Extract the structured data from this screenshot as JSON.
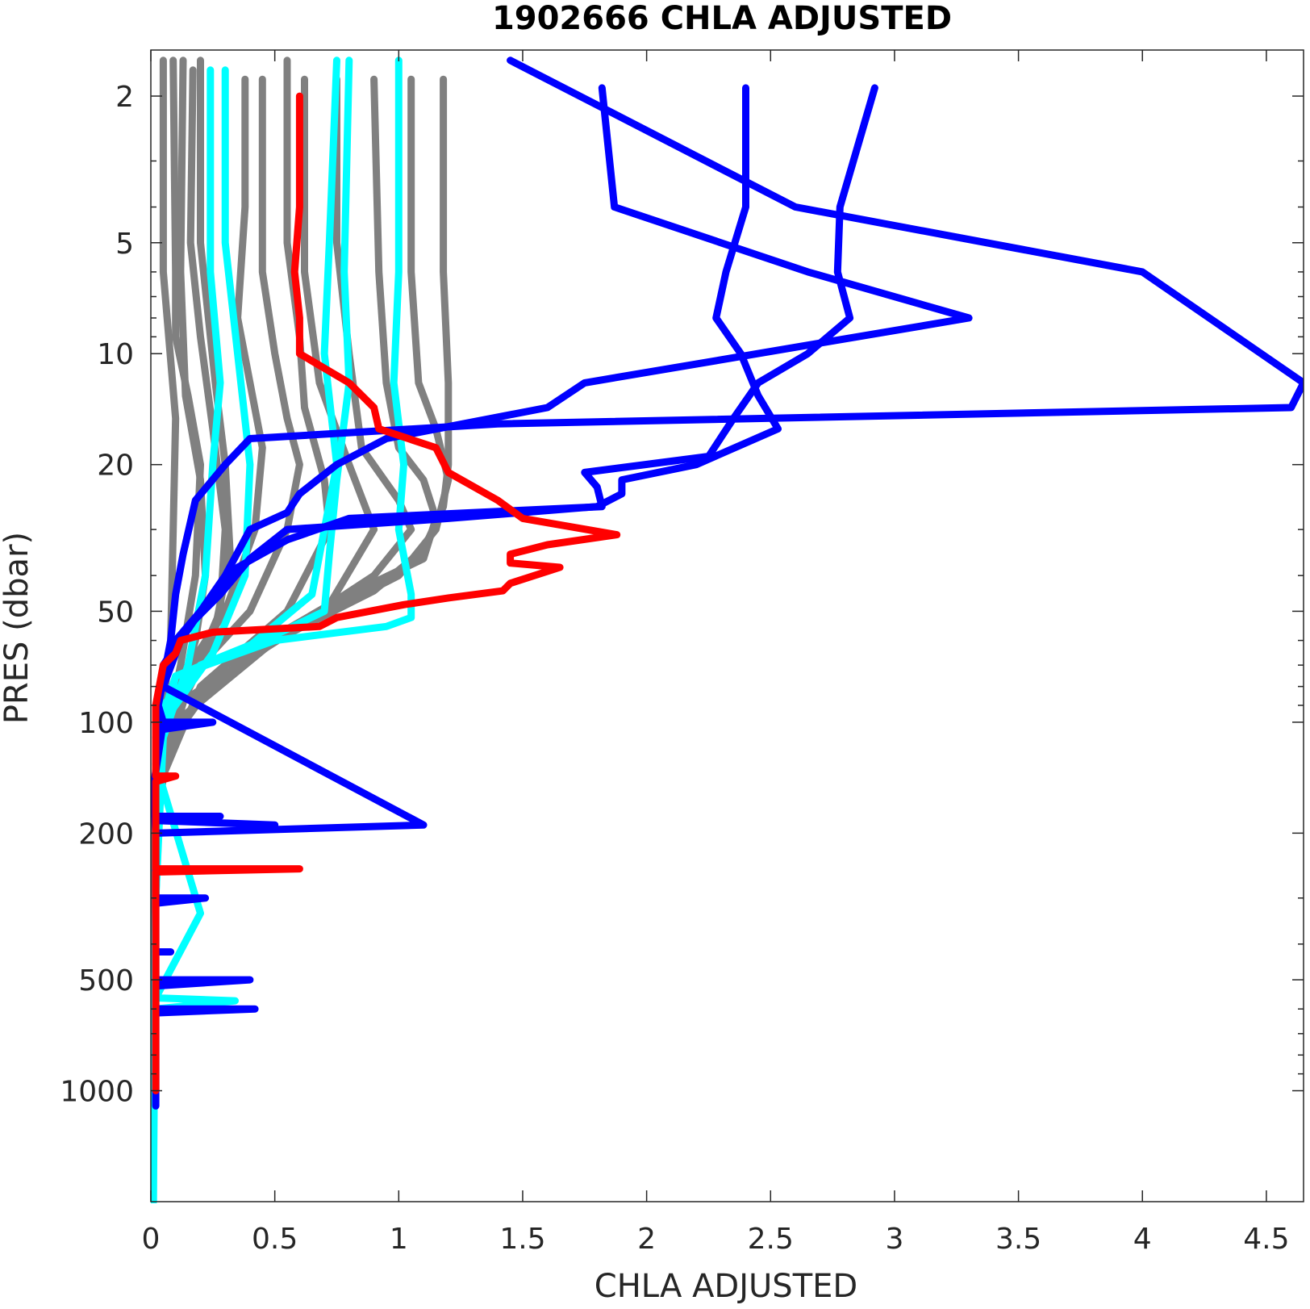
{
  "chart_data": {
    "type": "line",
    "title": "1902666  CHLA ADJUSTED",
    "xlabel": "CHLA ADJUSTED",
    "ylabel": "PRES (dbar)",
    "xlim": [
      0,
      4.65
    ],
    "ylim": [
      1.5,
      2000
    ],
    "yscale": "log",
    "y_reversed": true,
    "grid": false,
    "box": true,
    "x_ticks": [
      0,
      0.5,
      1,
      1.5,
      2,
      2.5,
      3,
      3.5,
      4,
      4.5
    ],
    "x_tick_labels": [
      "0",
      "0.5",
      "1",
      "1.5",
      "2",
      "2.5",
      "3",
      "3.5",
      "4",
      "4.5"
    ],
    "y_ticks": [
      2,
      5,
      10,
      20,
      50,
      100,
      200,
      500,
      1000
    ],
    "y_tick_labels": [
      "2",
      "5",
      "10",
      "20",
      "50",
      "100",
      "200",
      "500",
      "1000"
    ],
    "y_minor_ticks": [
      3,
      4,
      6,
      7,
      8,
      9,
      30,
      40,
      60,
      70,
      80,
      90,
      300,
      400,
      600,
      700,
      800,
      900
    ],
    "colors": {
      "gray": "#808080",
      "cyan": "#00ffff",
      "blue": "#0000ff",
      "red": "#ff0000"
    },
    "series": [
      {
        "color": "gray",
        "points": [
          [
            0.05,
            1.6
          ],
          [
            0.05,
            6
          ],
          [
            0.1,
            15
          ],
          [
            0.09,
            30
          ],
          [
            0.08,
            60
          ],
          [
            0.05,
            90
          ],
          [
            0.02,
            140
          ],
          [
            0.01,
            300
          ],
          [
            0.01,
            1000
          ]
        ]
      },
      {
        "color": "gray",
        "points": [
          [
            0.09,
            1.6
          ],
          [
            0.1,
            6
          ],
          [
            0.1,
            9
          ],
          [
            0.15,
            13
          ],
          [
            0.2,
            20
          ],
          [
            0.18,
            40
          ],
          [
            0.12,
            70
          ],
          [
            0.06,
            110
          ],
          [
            0.02,
            200
          ],
          [
            0.01,
            600
          ]
        ]
      },
      {
        "color": "gray",
        "points": [
          [
            0.13,
            1.6
          ],
          [
            0.12,
            6
          ],
          [
            0.14,
            13
          ],
          [
            0.2,
            22
          ],
          [
            0.22,
            40
          ],
          [
            0.18,
            60
          ],
          [
            0.08,
            100
          ],
          [
            0.02,
            200
          ]
        ]
      },
      {
        "color": "gray",
        "points": [
          [
            0.17,
            1.7
          ],
          [
            0.16,
            5
          ],
          [
            0.2,
            9
          ],
          [
            0.25,
            16
          ],
          [
            0.3,
            30
          ],
          [
            0.28,
            50
          ],
          [
            0.15,
            80
          ],
          [
            0.03,
            150
          ],
          [
            0.01,
            400
          ]
        ]
      },
      {
        "color": "gray",
        "points": [
          [
            0.2,
            1.6
          ],
          [
            0.2,
            5
          ],
          [
            0.26,
            12
          ],
          [
            0.3,
            20
          ],
          [
            0.32,
            35
          ],
          [
            0.25,
            60
          ],
          [
            0.12,
            90
          ],
          [
            0.03,
            150
          ]
        ]
      },
      {
        "color": "gray",
        "points": [
          [
            0.38,
            1.8
          ],
          [
            0.38,
            4
          ],
          [
            0.35,
            8
          ],
          [
            0.4,
            12
          ],
          [
            0.45,
            18
          ],
          [
            0.42,
            30
          ],
          [
            0.3,
            50
          ],
          [
            0.1,
            80
          ],
          [
            0.02,
            150
          ]
        ]
      },
      {
        "color": "gray",
        "points": [
          [
            0.45,
            1.8
          ],
          [
            0.45,
            6
          ],
          [
            0.5,
            10
          ],
          [
            0.55,
            15
          ],
          [
            0.6,
            20
          ],
          [
            0.55,
            30
          ],
          [
            0.4,
            50
          ],
          [
            0.2,
            70
          ],
          [
            0.03,
            120
          ]
        ]
      },
      {
        "color": "gray",
        "points": [
          [
            0.55,
            1.6
          ],
          [
            0.55,
            5
          ],
          [
            0.6,
            9
          ],
          [
            0.62,
            14
          ],
          [
            0.7,
            22
          ],
          [
            0.72,
            30
          ],
          [
            0.55,
            50
          ],
          [
            0.2,
            80
          ],
          [
            0.03,
            150
          ]
        ]
      },
      {
        "color": "gray",
        "points": [
          [
            0.62,
            1.8
          ],
          [
            0.62,
            6
          ],
          [
            0.68,
            12
          ],
          [
            0.8,
            20
          ],
          [
            0.9,
            30
          ],
          [
            0.72,
            48
          ],
          [
            0.3,
            70
          ],
          [
            0.05,
            120
          ]
        ]
      },
      {
        "color": "gray",
        "points": [
          [
            0.75,
            1.8
          ],
          [
            0.75,
            5
          ],
          [
            0.8,
            10
          ],
          [
            0.85,
            18
          ],
          [
            1.0,
            25
          ],
          [
            1.05,
            30
          ],
          [
            0.9,
            40
          ],
          [
            0.5,
            60
          ],
          [
            0.1,
            100
          ]
        ]
      },
      {
        "color": "gray",
        "points": [
          [
            0.9,
            1.8
          ],
          [
            0.92,
            6
          ],
          [
            0.95,
            12
          ],
          [
            1.0,
            18
          ],
          [
            1.1,
            22
          ],
          [
            1.15,
            28
          ],
          [
            1.1,
            36
          ],
          [
            0.8,
            45
          ],
          [
            0.3,
            70
          ],
          [
            0.05,
            120
          ]
        ]
      },
      {
        "color": "gray",
        "points": [
          [
            1.05,
            1.8
          ],
          [
            1.05,
            6
          ],
          [
            1.08,
            12
          ],
          [
            1.15,
            16
          ],
          [
            1.2,
            22
          ],
          [
            1.15,
            30
          ],
          [
            1.0,
            40
          ],
          [
            0.6,
            55
          ],
          [
            0.1,
            90
          ]
        ]
      },
      {
        "color": "gray",
        "points": [
          [
            1.18,
            1.8
          ],
          [
            1.18,
            6
          ],
          [
            1.2,
            12
          ],
          [
            1.2,
            20
          ],
          [
            1.18,
            26
          ],
          [
            1.1,
            34
          ],
          [
            0.9,
            44
          ],
          [
            0.4,
            65
          ],
          [
            0.05,
            110
          ]
        ]
      },
      {
        "color": "cyan",
        "points": [
          [
            0.24,
            1.7
          ],
          [
            0.24,
            6
          ],
          [
            0.28,
            12
          ],
          [
            0.25,
            20
          ],
          [
            0.22,
            40
          ],
          [
            0.15,
            70
          ],
          [
            0.05,
            110
          ],
          [
            0.02,
            300
          ],
          [
            0.01,
            1200
          ],
          [
            0.01,
            2000
          ]
        ]
      },
      {
        "color": "cyan",
        "points": [
          [
            0.3,
            1.7
          ],
          [
            0.3,
            5
          ],
          [
            0.35,
            10
          ],
          [
            0.4,
            20
          ],
          [
            0.38,
            40
          ],
          [
            0.25,
            65
          ],
          [
            0.05,
            100
          ],
          [
            0.02,
            300
          ],
          [
            0.01,
            2000
          ]
        ]
      },
      {
        "color": "cyan",
        "points": [
          [
            0.75,
            1.6
          ],
          [
            0.72,
            5
          ],
          [
            0.7,
            10
          ],
          [
            0.75,
            20
          ],
          [
            0.7,
            30
          ],
          [
            0.65,
            45
          ],
          [
            0.4,
            62
          ],
          [
            0.1,
            75
          ],
          [
            0.02,
            130
          ],
          [
            0.2,
            330
          ],
          [
            0.02,
            560
          ],
          [
            0.34,
            570
          ],
          [
            0.02,
            600
          ]
        ]
      },
      {
        "color": "cyan",
        "points": [
          [
            0.8,
            1.6
          ],
          [
            0.78,
            6
          ],
          [
            0.8,
            12
          ],
          [
            0.75,
            22
          ],
          [
            0.72,
            35
          ],
          [
            0.7,
            50
          ],
          [
            0.5,
            58
          ],
          [
            0.2,
            70
          ],
          [
            0.05,
            90
          ]
        ]
      },
      {
        "color": "cyan",
        "points": [
          [
            1.0,
            1.6
          ],
          [
            1.0,
            6
          ],
          [
            0.98,
            12
          ],
          [
            1.02,
            20
          ],
          [
            1.0,
            30
          ],
          [
            1.05,
            45
          ],
          [
            1.05,
            52
          ],
          [
            0.95,
            55
          ],
          [
            0.5,
            60
          ],
          [
            0.1,
            75
          ],
          [
            0.02,
            110
          ]
        ]
      },
      {
        "color": "blue",
        "points": [
          [
            1.45,
            1.6
          ],
          [
            2.6,
            4
          ],
          [
            4.0,
            6
          ],
          [
            4.65,
            12
          ],
          [
            4.6,
            14
          ],
          [
            1.4,
            15.5
          ],
          [
            0.4,
            17
          ],
          [
            0.3,
            20
          ],
          [
            0.18,
            25
          ],
          [
            0.13,
            35
          ],
          [
            0.1,
            45
          ],
          [
            0.08,
            60
          ],
          [
            0.03,
            90
          ],
          [
            0.05,
            100
          ],
          [
            0.01,
            150
          ],
          [
            0.02,
            200
          ],
          [
            0.02,
            1100
          ]
        ]
      },
      {
        "color": "blue",
        "points": [
          [
            1.82,
            1.9
          ],
          [
            1.87,
            4
          ],
          [
            2.65,
            6
          ],
          [
            3.3,
            8
          ],
          [
            1.75,
            12
          ],
          [
            1.6,
            14
          ],
          [
            0.95,
            17
          ],
          [
            0.75,
            20
          ],
          [
            0.6,
            24
          ],
          [
            0.55,
            27
          ],
          [
            0.4,
            30
          ],
          [
            0.3,
            40
          ],
          [
            0.2,
            50
          ],
          [
            0.12,
            60
          ],
          [
            0.05,
            80
          ],
          [
            1.1,
            190
          ],
          [
            0.02,
            200
          ]
        ]
      },
      {
        "color": "blue",
        "points": [
          [
            2.4,
            1.9
          ],
          [
            2.4,
            4
          ],
          [
            2.32,
            6
          ],
          [
            2.28,
            8
          ],
          [
            2.38,
            10
          ],
          [
            2.45,
            13
          ],
          [
            2.53,
            16
          ],
          [
            2.2,
            20
          ],
          [
            1.9,
            22
          ],
          [
            1.9,
            24
          ],
          [
            1.8,
            26
          ],
          [
            1.2,
            28
          ],
          [
            0.55,
            30
          ],
          [
            0.4,
            36
          ],
          [
            0.28,
            45
          ],
          [
            0.15,
            55
          ],
          [
            0.05,
            70
          ]
        ]
      },
      {
        "color": "blue",
        "points": [
          [
            2.92,
            1.9
          ],
          [
            2.78,
            4
          ],
          [
            2.77,
            6
          ],
          [
            2.82,
            8
          ],
          [
            2.65,
            10
          ],
          [
            2.45,
            12
          ],
          [
            2.35,
            15
          ],
          [
            2.25,
            19
          ],
          [
            1.75,
            21
          ],
          [
            1.8,
            23
          ],
          [
            1.82,
            26
          ],
          [
            0.8,
            28
          ],
          [
            0.55,
            32
          ],
          [
            0.35,
            38
          ],
          [
            0.2,
            50
          ],
          [
            0.1,
            60
          ]
        ]
      },
      {
        "color": "blue",
        "points": [
          [
            0.05,
            100
          ],
          [
            0.25,
            100
          ],
          [
            0.03,
            105
          ]
        ]
      },
      {
        "color": "blue",
        "points": [
          [
            0.02,
            180
          ],
          [
            0.28,
            180
          ],
          [
            0.03,
            185
          ],
          [
            0.5,
            190
          ]
        ]
      },
      {
        "color": "blue",
        "points": [
          [
            0.02,
            300
          ],
          [
            0.22,
            300
          ],
          [
            0.02,
            310
          ]
        ]
      },
      {
        "color": "blue",
        "points": [
          [
            0.02,
            420
          ],
          [
            0.08,
            420
          ]
        ]
      },
      {
        "color": "blue",
        "points": [
          [
            0.02,
            500
          ],
          [
            0.4,
            500
          ],
          [
            0.02,
            520
          ]
        ]
      },
      {
        "color": "blue",
        "points": [
          [
            0.02,
            600
          ],
          [
            0.42,
            600
          ],
          [
            0.02,
            615
          ]
        ]
      },
      {
        "color": "red",
        "points": [
          [
            0.6,
            2
          ],
          [
            0.6,
            4
          ],
          [
            0.58,
            6
          ],
          [
            0.6,
            8
          ],
          [
            0.6,
            10
          ],
          [
            0.8,
            12
          ],
          [
            0.9,
            14
          ],
          [
            0.92,
            16
          ],
          [
            1.15,
            18
          ],
          [
            1.2,
            21
          ],
          [
            1.4,
            25
          ],
          [
            1.5,
            28
          ],
          [
            1.88,
            31
          ],
          [
            1.6,
            33
          ],
          [
            1.45,
            35
          ],
          [
            1.45,
            37
          ],
          [
            1.65,
            38
          ],
          [
            1.45,
            42
          ],
          [
            1.42,
            44
          ],
          [
            1.2,
            46
          ],
          [
            1.02,
            48
          ],
          [
            0.75,
            52
          ],
          [
            0.68,
            55
          ],
          [
            0.25,
            57
          ],
          [
            0.12,
            60
          ],
          [
            0.1,
            65
          ],
          [
            0.05,
            70
          ],
          [
            0.02,
            90
          ],
          [
            0.02,
            140
          ],
          [
            0.1,
            140
          ],
          [
            0.02,
            145
          ],
          [
            0.02,
            250
          ],
          [
            0.6,
            250
          ],
          [
            0.02,
            255
          ],
          [
            0.02,
            1000
          ]
        ]
      }
    ]
  }
}
